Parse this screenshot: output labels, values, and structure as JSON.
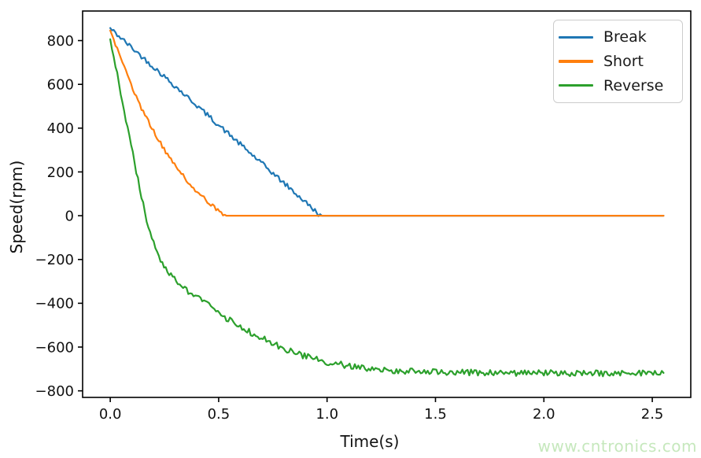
{
  "watermark": {
    "text": "www.cntronics.com",
    "color": "#c6e8bd"
  },
  "chart_data": {
    "type": "line",
    "title": "",
    "xlabel": "Time(s)",
    "ylabel": "Speed(rpm)",
    "xlim": [
      -0.1275,
      2.6775
    ],
    "ylim": [
      -830,
      935
    ],
    "grid": false,
    "legend_position": "upper right",
    "x_ticks": [
      0.0,
      0.5,
      1.0,
      1.5,
      2.0,
      2.5
    ],
    "x_tick_labels": [
      "0.0",
      "0.5",
      "1.0",
      "1.5",
      "2.0",
      "2.5"
    ],
    "y_ticks": [
      800,
      600,
      400,
      200,
      0,
      -200,
      -400,
      -600,
      -800
    ],
    "y_tick_labels": [
      "800",
      "600",
      "400",
      "200",
      "0",
      "−200",
      "−400",
      "−600",
      "−800"
    ],
    "t_end": 2.55,
    "sample_step": 0.008,
    "noise_seed": 42,
    "axis_color": "#000000",
    "tick_label_color": "#111111",
    "series": [
      {
        "name": "Break",
        "color": "#1f77b4",
        "noise": 11,
        "clip_zero": true,
        "anchors_t": [
          0,
          0.1,
          0.2,
          0.3,
          0.4,
          0.5,
          0.6,
          0.7,
          0.8,
          0.9,
          0.97,
          2.55
        ],
        "anchors_v": [
          855,
          767,
          679,
          591,
          503,
          414,
          326,
          238,
          150,
          62,
          0,
          0
        ]
      },
      {
        "name": "Short",
        "color": "#ff7f0e",
        "noise": 9,
        "clip_zero": true,
        "anchors_t": [
          0,
          0.05,
          0.1,
          0.15,
          0.2,
          0.25,
          0.3,
          0.35,
          0.4,
          0.45,
          0.5,
          0.53,
          2.55
        ],
        "anchors_v": [
          850,
          710,
          590,
          478,
          385,
          302,
          228,
          165,
          110,
          62,
          20,
          0,
          0
        ]
      },
      {
        "name": "Reverse",
        "color": "#2ca02c",
        "noise": 14,
        "clip_zero": false,
        "anchors_t": [
          0,
          0.05,
          0.1,
          0.15,
          0.18,
          0.22,
          0.28,
          0.36,
          0.44,
          0.52,
          0.58,
          0.66,
          0.72,
          0.79,
          0.88,
          1.0,
          1.12,
          1.25,
          1.4,
          1.6,
          1.8,
          2.0,
          2.2,
          2.4,
          2.55
        ],
        "anchors_v": [
          810,
          555,
          300,
          60,
          -75,
          -185,
          -270,
          -345,
          -400,
          -458,
          -495,
          -540,
          -568,
          -605,
          -636,
          -668,
          -690,
          -704,
          -712,
          -716,
          -718,
          -718,
          -720,
          -720,
          -719
        ]
      }
    ]
  }
}
